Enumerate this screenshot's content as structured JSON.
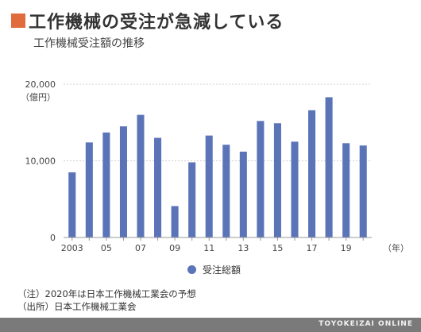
{
  "header": {
    "title": "工作機械の受注が急減している",
    "subtitle": "工作機械受注額の推移"
  },
  "colors": {
    "accent": "#e06b3c",
    "bar": "#5b74b8",
    "footer": "#7a7a7a"
  },
  "chart_data": {
    "type": "bar",
    "x": [
      2003,
      2004,
      2005,
      2006,
      2007,
      2008,
      2009,
      2010,
      2011,
      2012,
      2013,
      2014,
      2015,
      2016,
      2017,
      2018,
      2019,
      2020
    ],
    "series": [
      {
        "name": "受注総額",
        "values": [
          8500,
          12400,
          13700,
          14500,
          16000,
          13000,
          4100,
          9800,
          13300,
          12100,
          11200,
          15200,
          14900,
          12500,
          16600,
          18300,
          12300,
          12000
        ]
      }
    ],
    "x_tick_labels": [
      "2003",
      "",
      "05",
      "",
      "07",
      "",
      "09",
      "",
      "11",
      "",
      "13",
      "",
      "15",
      "",
      "17",
      "",
      "19",
      ""
    ],
    "x_unit": "（年）",
    "y_ticks": [
      {
        "value": 0,
        "label": "0"
      },
      {
        "value": 10000,
        "label": "10,000"
      },
      {
        "value": 20000,
        "label": "20,000"
      }
    ],
    "y_unit": "（億円）",
    "ylim": [
      0,
      20000
    ],
    "grid": true,
    "legend_position": "bottom"
  },
  "notes": {
    "note1": "（注）2020年は日本工作機械工業会の予想",
    "note2": "（出所）日本工作機械工業会"
  },
  "footer": {
    "brand": "TOYOKEIZAI ONLINE"
  }
}
